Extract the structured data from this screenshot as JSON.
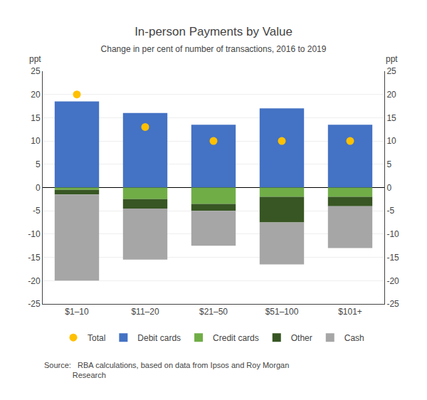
{
  "chart_data": {
    "type": "bar",
    "title": "In-person Payments by Value",
    "subtitle": "Change in per cent of number of transactions, 2016 to 2019",
    "categories": [
      "$1–10",
      "$11–20",
      "$21–50",
      "$51–100",
      "$101+"
    ],
    "stacked": true,
    "series": [
      {
        "name": "Total",
        "type": "scatter",
        "marker": "circle",
        "color": "#ffc000",
        "values": [
          20.0,
          13.0,
          10.0,
          10.0,
          10.0
        ]
      },
      {
        "name": "Debit cards",
        "type": "bar",
        "color": "#4472c4",
        "values": [
          18.5,
          16.0,
          13.5,
          17.0,
          13.5
        ]
      },
      {
        "name": "Credit cards",
        "type": "bar",
        "color": "#70ad47",
        "values": [
          -0.5,
          -2.5,
          -3.5,
          -2.0,
          -2.0
        ]
      },
      {
        "name": "Other",
        "type": "bar",
        "color": "#375623",
        "values": [
          -1.0,
          -2.0,
          -1.5,
          -5.5,
          -2.0
        ]
      },
      {
        "name": "Cash",
        "type": "bar",
        "color": "#a6a6a6",
        "values": [
          -18.5,
          -11.0,
          -7.5,
          -9.0,
          -9.0
        ]
      }
    ],
    "ylabel": "ppt",
    "y2label": "ppt",
    "ylim": [
      -25,
      25
    ],
    "yticks": [
      -25,
      -20,
      -15,
      -10,
      -5,
      0,
      5,
      10,
      15,
      20,
      25
    ],
    "y2lim": [
      -25,
      25
    ],
    "y2ticks": [
      -25,
      -20,
      -15,
      -10,
      -5,
      0,
      5,
      10,
      15,
      20,
      25
    ],
    "grid": true,
    "legend": "bottom",
    "annotations": [
      {
        "text": "Source:   RBA calculations, based on data from Ipsos and Roy Morgan\n             Research"
      }
    ]
  }
}
